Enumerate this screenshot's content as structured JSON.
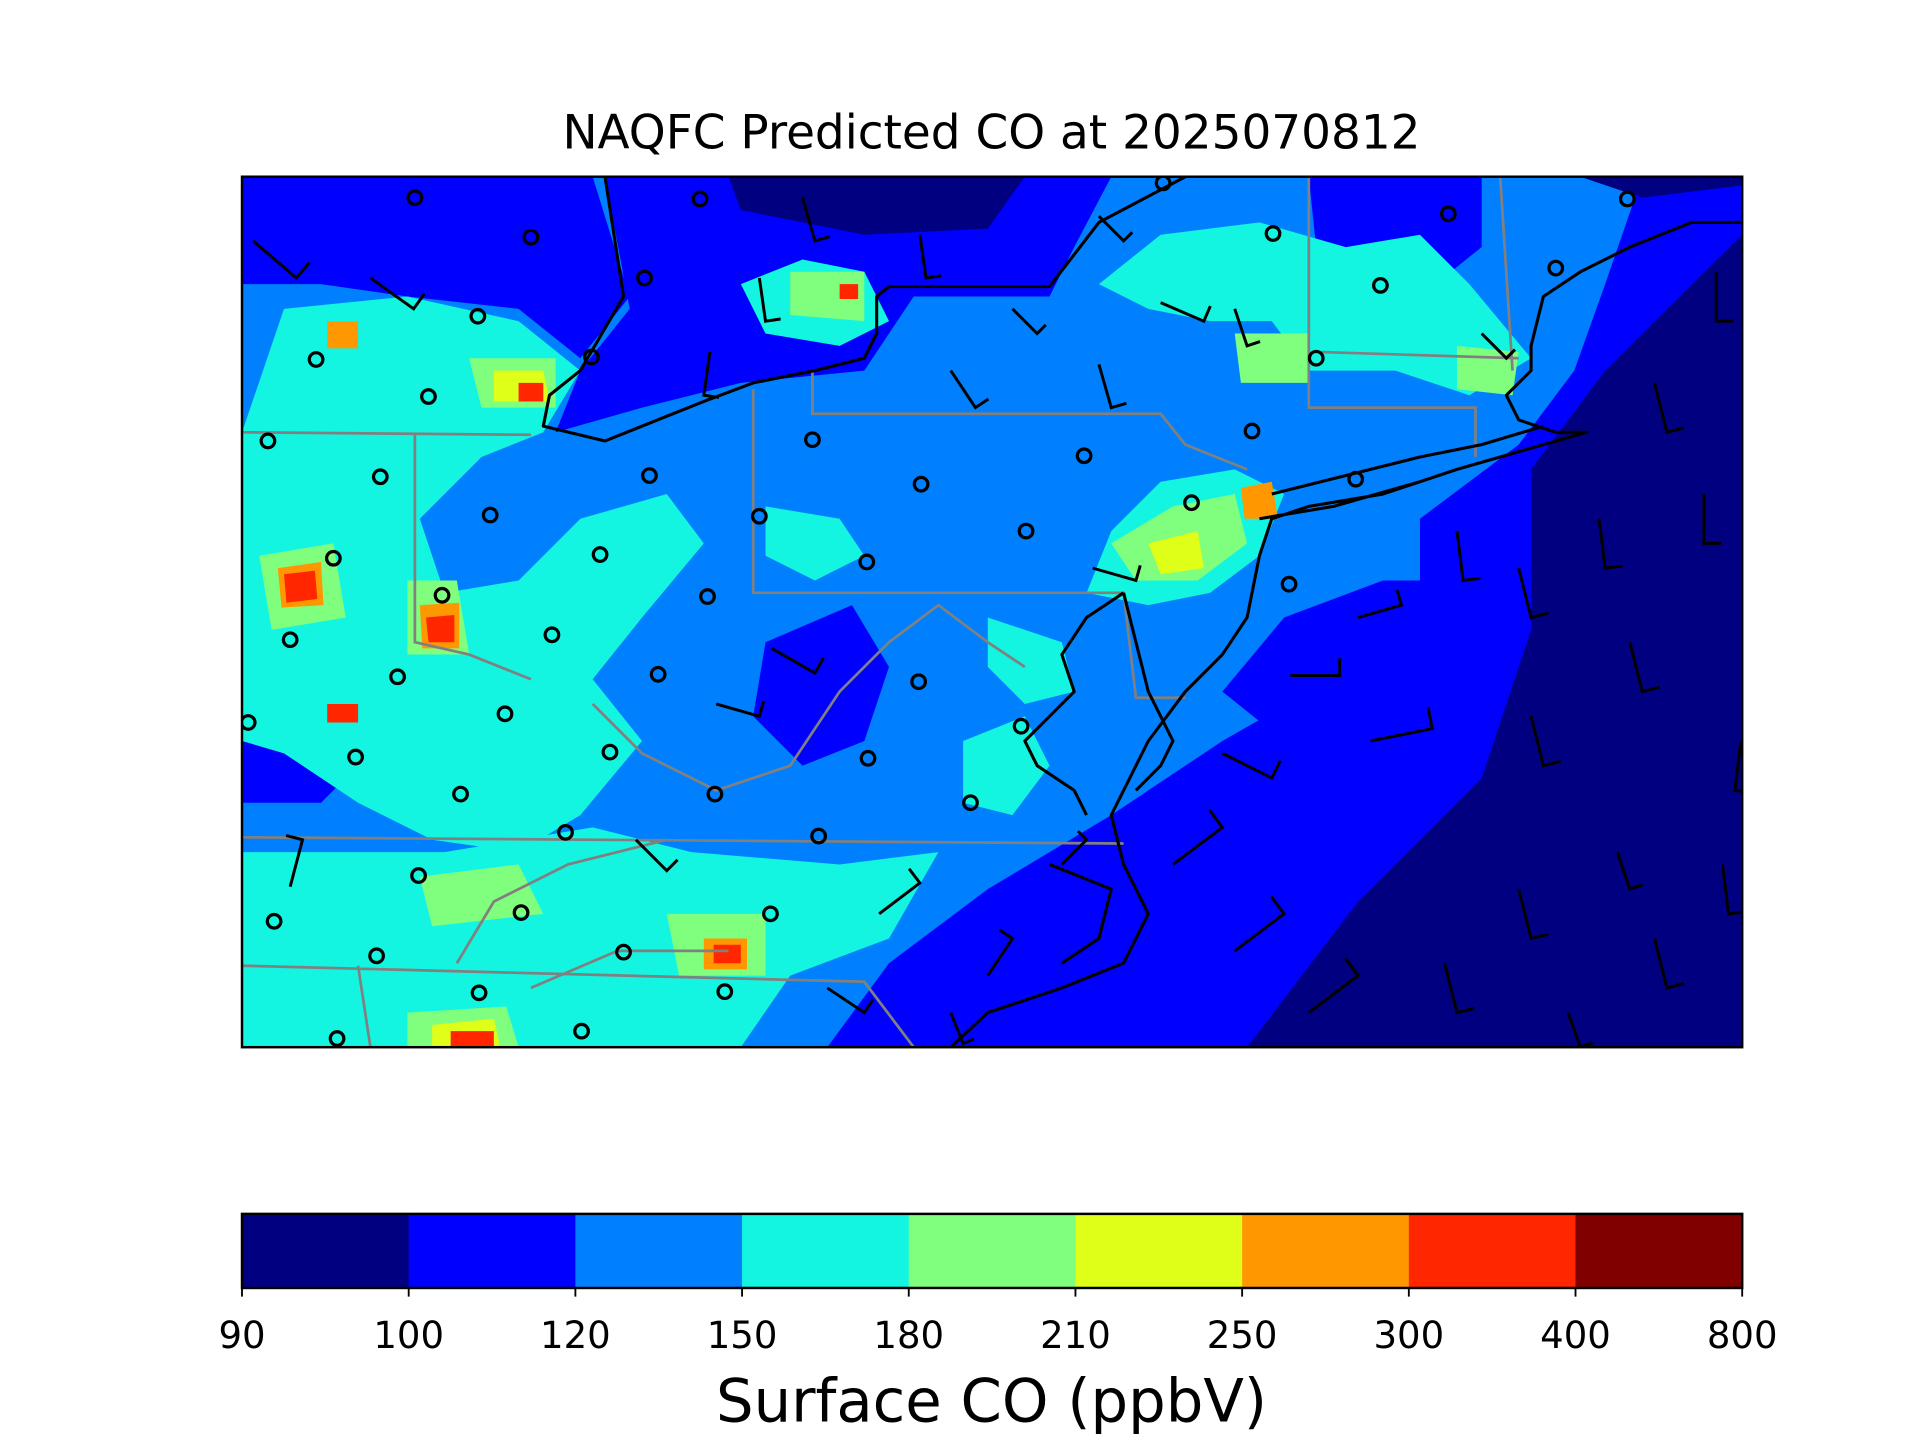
{
  "title": "NAQFC Predicted CO at 2025070812",
  "colorbar": {
    "label": "Surface CO (ppbV)",
    "bounds": [
      90,
      100,
      120,
      150,
      180,
      210,
      250,
      300,
      400,
      800
    ],
    "colors": [
      "#000080",
      "#0000ff",
      "#0080ff",
      "#13f5e0",
      "#80ff7f",
      "#e0ff18",
      "#ff9800",
      "#ff2600",
      "#800000"
    ]
  }
}
